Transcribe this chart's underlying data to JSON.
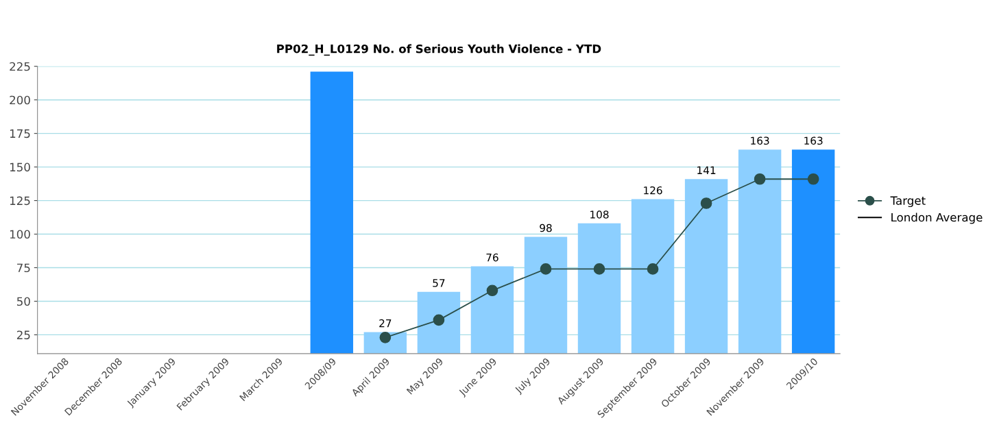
{
  "chart_data": {
    "type": "bar",
    "title": "PP02_H_L0129 No. of Serious Youth Violence - YTD",
    "categories": [
      "November 2008",
      "December 2008",
      "January 2009",
      "February 2009",
      "March 2009",
      "2008/09",
      "April 2009",
      "May 2009",
      "June 2009",
      "July 2009",
      "August 2009",
      "September 2009",
      "October 2009",
      "November 2009",
      "2009/10"
    ],
    "series": [
      {
        "values": [
          null,
          null,
          null,
          null,
          null,
          221,
          27,
          57,
          76,
          98,
          108,
          126,
          141,
          163,
          163
        ],
        "colors": [
          "#8ccfff",
          "#8ccfff",
          "#8ccfff",
          "#8ccfff",
          "#8ccfff",
          "#1e90ff",
          "#8ccfff",
          "#8ccfff",
          "#8ccfff",
          "#8ccfff",
          "#8ccfff",
          "#8ccfff",
          "#8ccfff",
          "#8ccfff",
          "#1e90ff"
        ],
        "value_labels": [
          null,
          null,
          null,
          null,
          null,
          null,
          "27",
          "57",
          "76",
          "98",
          "108",
          "126",
          "141",
          "163",
          "163"
        ]
      },
      {
        "type": "line",
        "name": "Target",
        "color": "#2b4f4a",
        "marker": "circle",
        "values": [
          null,
          null,
          null,
          null,
          null,
          null,
          23,
          36,
          58,
          74,
          74,
          74,
          123,
          141,
          141
        ]
      },
      {
        "type": "line",
        "name": "London Average",
        "color": "#000000",
        "marker": "none",
        "values": [
          null,
          null,
          null,
          null,
          null,
          null,
          null,
          null,
          null,
          null,
          null,
          null,
          null,
          null,
          null
        ]
      }
    ],
    "ylim": [
      11,
      225
    ],
    "yticks": [
      25,
      50,
      75,
      100,
      125,
      150,
      175,
      200,
      225
    ],
    "grid": "y",
    "legend": "right"
  }
}
